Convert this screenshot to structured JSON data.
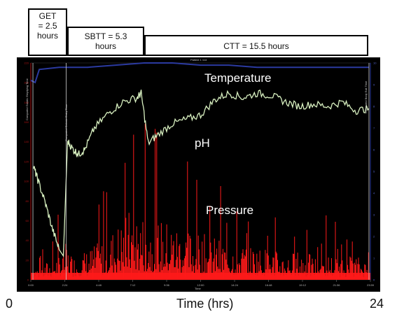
{
  "phases": {
    "get": {
      "line1": "GET",
      "line2": "= 2.5",
      "line3": "hours"
    },
    "sbtt": {
      "line1": "SBTT = 5.3",
      "line2": "hours"
    },
    "ctt": {
      "line1": "CTT = 15.5 hours"
    }
  },
  "plot": {
    "header": "Patient 1 114",
    "left_scale_tick_labels": [
      "220",
      "200",
      "180",
      "160",
      "140",
      "120",
      "100",
      "80",
      "60",
      "40",
      "20",
      "0"
    ],
    "right_scale_tick_labels": [
      "10",
      "9",
      "8",
      "7",
      "6",
      "5",
      "4",
      "3",
      "2",
      "1",
      "0"
    ],
    "event_label_1": "Computed Gastric Emptying Time",
    "event_label_2": "Computed Colonic Entry Time",
    "event_label_3": "Computed Body Exit Time",
    "x_axis_caption": "Time"
  },
  "colors": {
    "background": "#000000",
    "temperature": "#2b3aa0",
    "ph": "#d8f0c0",
    "pressure": "#ff1a1a",
    "markers": "#d0d0d0"
  },
  "chart_data": {
    "type": "line",
    "xlabel": "Time (hrs)",
    "xlim": [
      0,
      24
    ],
    "x_tick_labels": [
      "0:00",
      "2:24",
      "4:48",
      "7:12",
      "9:36",
      "12:00",
      "14:24",
      "16:48",
      "19:12",
      "21:36",
      "23:59"
    ],
    "x_axis_end_labels": [
      "0",
      "24"
    ],
    "ph_ylim": [
      0,
      10
    ],
    "event_markers_hrs": [
      0.15,
      2.5,
      23.9
    ],
    "series": [
      {
        "name": "Temperature",
        "axis": "right",
        "x": [
          0,
          0.3,
          0.6,
          2,
          4,
          6,
          8,
          10,
          12,
          14,
          16,
          18,
          20,
          22,
          23.9
        ],
        "values": [
          9.2,
          9.1,
          9.7,
          9.8,
          9.8,
          9.9,
          10.0,
          10.0,
          9.9,
          9.9,
          9.8,
          9.8,
          9.8,
          9.8,
          9.8
        ]
      },
      {
        "name": "pH",
        "axis": "right",
        "x": [
          0.2,
          0.5,
          1.0,
          1.5,
          2.0,
          2.3,
          2.6,
          3.0,
          3.4,
          3.8,
          4.5,
          5.5,
          6.5,
          7.5,
          7.8,
          8.3,
          9.0,
          10,
          11,
          12,
          13,
          14,
          15,
          16,
          17,
          18,
          19,
          20,
          21,
          22,
          23,
          23.9
        ],
        "values": [
          5.2,
          4.6,
          3.6,
          2.4,
          1.4,
          1.1,
          6.4,
          6.0,
          5.8,
          6.0,
          7.0,
          7.7,
          8.2,
          8.4,
          8.6,
          6.3,
          6.7,
          7.2,
          7.4,
          7.6,
          8.3,
          8.6,
          8.4,
          8.6,
          8.5,
          8.2,
          8.0,
          8.1,
          8.0,
          8.2,
          7.8,
          7.9
        ]
      },
      {
        "name": "Pressure",
        "axis": "left",
        "x": [
          0,
          1,
          2,
          2.5,
          3,
          4,
          5,
          6,
          7,
          8,
          9,
          10,
          11,
          12,
          13,
          14,
          15,
          16,
          17,
          18,
          19,
          20,
          21,
          22,
          23,
          23.9
        ],
        "values": [
          10,
          14,
          22,
          30,
          20,
          25,
          32,
          45,
          58,
          55,
          50,
          48,
          42,
          38,
          35,
          32,
          30,
          28,
          25,
          22,
          24,
          20,
          22,
          18,
          20,
          15
        ]
      }
    ]
  }
}
